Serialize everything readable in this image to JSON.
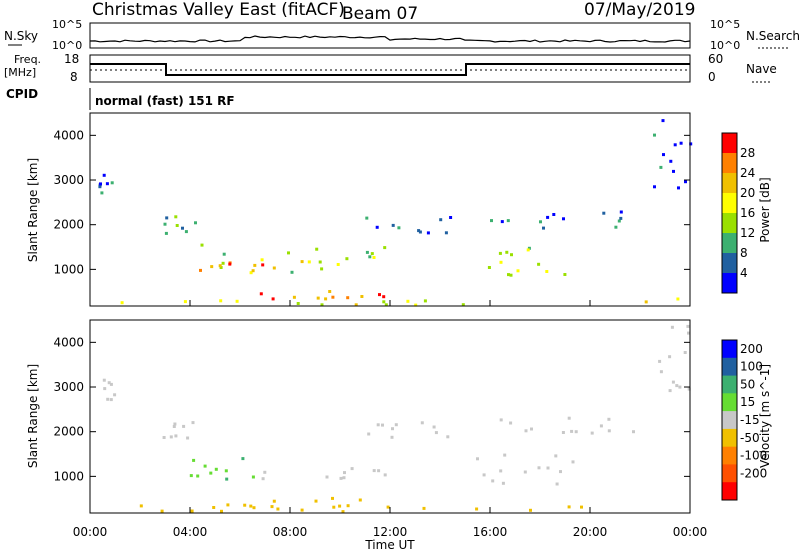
{
  "header": {
    "station": "Christmas Valley East (fitACF)",
    "beam": "Beam 07",
    "date": "07/May/2019"
  },
  "top_panels": {
    "nsky_label": "N.Sky",
    "nsearch_label": "N.Search",
    "noise_ticks_left": [
      "10^5",
      "10^0"
    ],
    "noise_ticks_right": [
      "10^5",
      "10^0"
    ],
    "freq_label": "Freq.",
    "freq_unit": "[MHz]",
    "freq_ticks": [
      "18",
      "8"
    ],
    "nave_label": "Nave",
    "nave_ticks": [
      "60",
      "0"
    ],
    "cpid_label": "CPID",
    "cpid_value": "normal (fast) 151 RF"
  },
  "chart_data": [
    {
      "type": "heatmap",
      "panel": "power",
      "ylabel": "Slant Range [km]",
      "xlabel": "",
      "colorbar_label": "Power [dB]",
      "colorbar_ticks": [
        "28",
        "24",
        "20",
        "16",
        "12",
        "8",
        "4"
      ],
      "colorbar_colors": [
        "#ff0000",
        "#ff8000",
        "#f0c000",
        "#ffff00",
        "#9ae000",
        "#3cb070",
        "#2060a0",
        "#0000ff"
      ],
      "y_ticks": [
        "4000",
        "3000",
        "2000",
        "1000"
      ],
      "ylim": [
        180,
        4500
      ],
      "xlim": [
        0,
        24
      ],
      "regions": [
        {
          "t0": 0.3,
          "t1": 1.0,
          "r0": 2700,
          "r1": 3200,
          "v": 7
        },
        {
          "t0": 2.9,
          "t1": 4.3,
          "r0": 1700,
          "r1": 2200,
          "v": 11
        },
        {
          "t0": 3.8,
          "t1": 12.0,
          "r0": 900,
          "r1": 1550,
          "v": 13
        },
        {
          "t0": 4.2,
          "t1": 10.0,
          "r0": 950,
          "r1": 1200,
          "v": 25
        },
        {
          "t0": 6.0,
          "t1": 12.0,
          "r0": 300,
          "r1": 500,
          "v": 26
        },
        {
          "t0": 0.0,
          "t1": 24.0,
          "r0": 180,
          "r1": 360,
          "v": 18
        },
        {
          "t0": 11.0,
          "t1": 14.5,
          "r0": 1800,
          "r1": 2200,
          "v": 6
        },
        {
          "t0": 15.3,
          "t1": 19.5,
          "r0": 800,
          "r1": 1500,
          "v": 16
        },
        {
          "t0": 16.0,
          "t1": 22.5,
          "r0": 1900,
          "r1": 2300,
          "v": 6
        },
        {
          "t0": 22.5,
          "t1": 24.0,
          "r0": 2800,
          "r1": 4400,
          "v": 5
        }
      ]
    },
    {
      "type": "heatmap",
      "panel": "velocity",
      "ylabel": "Slant Range [km]",
      "xlabel": "Time UT",
      "colorbar_label": "Velocity [m s^-1]",
      "colorbar_ticks": [
        "200",
        "100",
        "50",
        "15",
        "-15",
        "-50",
        "-100",
        "-200"
      ],
      "colorbar_colors": [
        "#0000ff",
        "#2060a0",
        "#3cb070",
        "#66dd33",
        "#c8c8c8",
        "#f0c000",
        "#ff8000",
        "#ff5000",
        "#ff0000"
      ],
      "y_ticks": [
        "4000",
        "3000",
        "2000",
        "1000"
      ],
      "x_ticks": [
        "00:00",
        "04:00",
        "08:00",
        "12:00",
        "16:00",
        "20:00",
        "00:00"
      ],
      "ylim": [
        180,
        4500
      ],
      "xlim": [
        0,
        24
      ],
      "regions": [
        {
          "t0": 0.3,
          "t1": 1.0,
          "r0": 2700,
          "r1": 3200,
          "v": 0
        },
        {
          "t0": 2.9,
          "t1": 4.3,
          "r0": 1700,
          "r1": 2200,
          "v": 0
        },
        {
          "t0": 3.8,
          "t1": 6.5,
          "r0": 900,
          "r1": 1550,
          "v": 30
        },
        {
          "t0": 6.5,
          "t1": 12.0,
          "r0": 900,
          "r1": 1200,
          "v": 0
        },
        {
          "t0": 5.5,
          "t1": 12.0,
          "r0": 300,
          "r1": 500,
          "v": -40
        },
        {
          "t0": 0.0,
          "t1": 24.0,
          "r0": 180,
          "r1": 360,
          "v": -30
        },
        {
          "t0": 11.0,
          "t1": 14.5,
          "r0": 1800,
          "r1": 2200,
          "v": 0
        },
        {
          "t0": 15.3,
          "t1": 19.5,
          "r0": 800,
          "r1": 1500,
          "v": 0
        },
        {
          "t0": 16.0,
          "t1": 22.5,
          "r0": 1900,
          "r1": 2300,
          "v": 0
        },
        {
          "t0": 22.5,
          "t1": 24.0,
          "r0": 2800,
          "r1": 4400,
          "v": 0
        }
      ]
    }
  ]
}
